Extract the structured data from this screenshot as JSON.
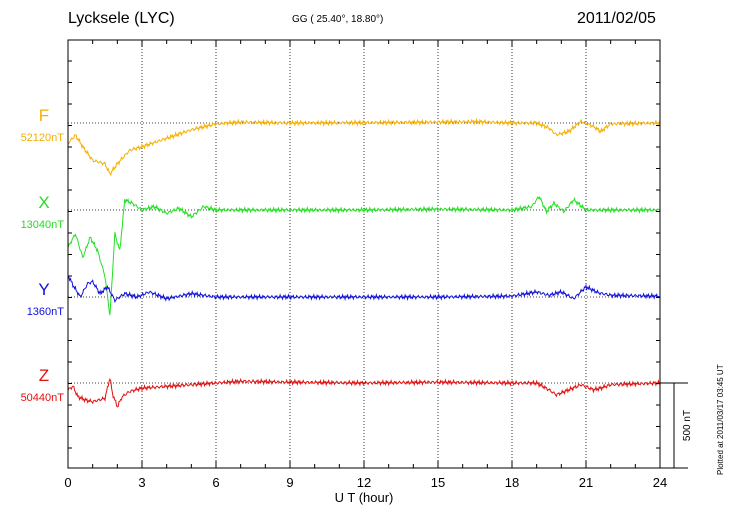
{
  "header": {
    "station": "Lycksele (LYC)",
    "coords": "GG ( 25.40°,  18.80°)",
    "date": "2011/02/05"
  },
  "footer": {
    "plotted": "Plotted at 2011/03/17 03:45 UT"
  },
  "colors": {
    "F": "#f5b000",
    "X": "#22e022",
    "Y": "#1010dd",
    "Z": "#e01010"
  },
  "chart_data": {
    "type": "line",
    "xlabel": "U T (hour)",
    "xlim": [
      0,
      24
    ],
    "x_ticks": [
      0,
      3,
      6,
      9,
      12,
      15,
      18,
      21,
      24
    ],
    "x_tick_labels": [
      "0",
      "3",
      "6",
      "9",
      "12",
      "15",
      "18",
      "21",
      "24"
    ],
    "y_unit": "nT",
    "scale_bar_label": "500 nT",
    "scale_bar_value": 500,
    "grid": "dotted",
    "series": [
      {
        "name": "F",
        "baseline_label": "52120nT",
        "baseline": 52120,
        "x": [
          0,
          0.3,
          0.6,
          1.0,
          1.5,
          1.7,
          2.0,
          2.5,
          3.0,
          4.0,
          5.0,
          6.0,
          7.0,
          9.0,
          12.0,
          15.0,
          16.5,
          18.0,
          19.0,
          19.5,
          19.8,
          20.3,
          20.8,
          21.3,
          21.6,
          22.0,
          24.0
        ],
        "values": [
          52000,
          52050,
          51980,
          51900,
          51880,
          51820,
          51880,
          51960,
          51980,
          52030,
          52080,
          52115,
          52125,
          52120,
          52122,
          52125,
          52128,
          52120,
          52120,
          52090,
          52050,
          52070,
          52130,
          52100,
          52070,
          52115,
          52120
        ]
      },
      {
        "name": "X",
        "baseline_label": "13040nT",
        "baseline": 13040,
        "x": [
          0,
          0.3,
          0.6,
          0.9,
          1.2,
          1.5,
          1.7,
          1.9,
          2.1,
          2.3,
          2.6,
          3.0,
          3.5,
          4.0,
          4.5,
          5.0,
          5.5,
          6.0,
          9.0,
          12.0,
          15.0,
          18.0,
          18.8,
          19.1,
          19.4,
          19.7,
          20.1,
          20.5,
          21.0,
          24.0
        ],
        "values": [
          12820,
          12900,
          12760,
          12880,
          12800,
          12650,
          12420,
          12900,
          12800,
          13100,
          13080,
          13040,
          13060,
          13020,
          13050,
          13000,
          13060,
          13040,
          13040,
          13040,
          13045,
          13040,
          13060,
          13120,
          13030,
          13080,
          13030,
          13100,
          13040,
          13040
        ]
      },
      {
        "name": "Y",
        "baseline_label": "1360nT",
        "baseline": 1360,
        "x": [
          0,
          0.2,
          0.5,
          0.8,
          1.0,
          1.3,
          1.6,
          1.9,
          2.3,
          2.8,
          3.3,
          4.0,
          5.0,
          6.0,
          9.0,
          12.0,
          15.0,
          18.0,
          19.0,
          19.5,
          20.0,
          20.5,
          21.0,
          21.5,
          22.0,
          24.0
        ],
        "values": [
          1490,
          1430,
          1360,
          1440,
          1450,
          1380,
          1420,
          1340,
          1380,
          1360,
          1390,
          1350,
          1380,
          1360,
          1360,
          1360,
          1360,
          1365,
          1390,
          1370,
          1390,
          1350,
          1420,
          1385,
          1370,
          1365
        ]
      },
      {
        "name": "Z",
        "baseline_label": "50440nT",
        "baseline": 50440,
        "x": [
          0,
          0.2,
          0.4,
          0.7,
          1.0,
          1.5,
          1.7,
          1.8,
          2.0,
          2.2,
          2.5,
          3.0,
          4.0,
          5.0,
          6.0,
          7.0,
          9.0,
          12.0,
          15.0,
          18.0,
          19.0,
          19.5,
          19.8,
          20.3,
          20.8,
          21.3,
          21.6,
          22.0,
          24.0
        ],
        "values": [
          50400,
          50420,
          50360,
          50340,
          50330,
          50350,
          50470,
          50380,
          50300,
          50360,
          50390,
          50410,
          50420,
          50430,
          50440,
          50450,
          50445,
          50440,
          50445,
          50440,
          50440,
          50400,
          50370,
          50400,
          50430,
          50400,
          50410,
          50430,
          50440
        ]
      }
    ]
  }
}
